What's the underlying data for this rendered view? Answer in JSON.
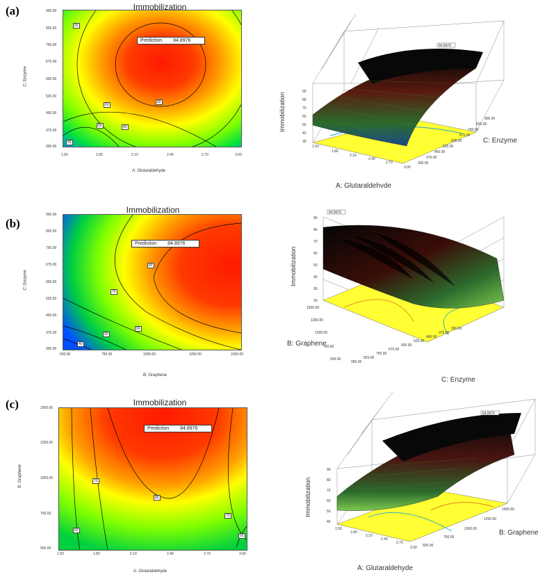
{
  "chart_data": [
    {
      "panel": "(a)",
      "type": "contour",
      "title": "Immobilization",
      "xlabel": "A: Glutaraldehyde",
      "ylabel": "C: Enzyme",
      "x_ticks": [
        "1.50",
        "1.80",
        "2.10",
        "2.40",
        "2.70",
        "3.00"
      ],
      "y_ticks": [
        "900.00",
        "825.00",
        "750.00",
        "675.00",
        "600.00",
        "525.00",
        "450.00",
        "375.00",
        "300.00"
      ],
      "xlim": [
        1.5,
        3.0
      ],
      "ylim": [
        300,
        900
      ],
      "prediction_label": "Prediction",
      "prediction_value": "84.8976",
      "contour_labels": [
        "50",
        "60",
        "70",
        "80",
        "60",
        "80",
        "50"
      ],
      "optimum": {
        "x": 2.4,
        "y": 650
      },
      "surface": {
        "zlabel": "Immobilization",
        "xlabel": "A: Glutaraldehyde",
        "ylabel": "C: Enzyme",
        "z_ticks": [
          "30",
          "40",
          "50",
          "60",
          "70",
          "80",
          "90"
        ],
        "x_ticks": [
          "1.50",
          "1.80",
          "2.10",
          "2.40",
          "2.70",
          "3.00"
        ],
        "y_ticks": [
          "300.00",
          "375.00",
          "450.00",
          "525.00",
          "600.00",
          "675.00",
          "750.00",
          "825.00",
          "900.00"
        ],
        "peak_label": "84.8976"
      }
    },
    {
      "panel": "(b)",
      "type": "contour",
      "title": "Immobilization",
      "xlabel": "B: Graphene",
      "ylabel": "C: Enzyme",
      "x_ticks": [
        "500.00",
        "750.00",
        "1000.00",
        "1250.00",
        "1500.00"
      ],
      "y_ticks": [
        "900.00",
        "825.00",
        "750.00",
        "675.00",
        "600.00",
        "525.00",
        "450.00",
        "375.00",
        "300.00"
      ],
      "xlim": [
        500,
        1500
      ],
      "ylim": [
        300,
        900
      ],
      "prediction_label": "Prediction",
      "prediction_value": "84.8976",
      "contour_labels": [
        "80",
        "70",
        "60",
        "50",
        "40"
      ],
      "optimum": {
        "x": 1450,
        "y": 650
      },
      "surface": {
        "zlabel": "Immobilization",
        "xlabel": "C: Enzyme",
        "ylabel": "B: Graphene",
        "z_ticks": [
          "20",
          "30",
          "40",
          "50",
          "60",
          "70",
          "80",
          "90"
        ],
        "x_ticks": [
          "900.00",
          "825.00",
          "750.00",
          "675.00",
          "600.00",
          "525.00",
          "450.00",
          "375.00",
          "300.00"
        ],
        "y_ticks": [
          "500.00",
          "750.00",
          "1000.00",
          "1250.00",
          "1500.00"
        ],
        "peak_label": "84.8976"
      }
    },
    {
      "panel": "(c)",
      "type": "contour",
      "title": "Immobilization",
      "xlabel": "A: Glutaraldehyde",
      "ylabel": "B: Graphene",
      "x_ticks": [
        "1.50",
        "1.80",
        "2.10",
        "2.40",
        "2.70",
        "3.00"
      ],
      "y_ticks": [
        "1500.00",
        "1250.00",
        "1000.00",
        "750.00",
        "500.00"
      ],
      "xlim": [
        1.5,
        3.0
      ],
      "ylim": [
        500,
        1500
      ],
      "prediction_label": "Prediction",
      "prediction_value": "84.8976",
      "contour_labels": [
        "70",
        "80",
        "70",
        "60",
        "60"
      ],
      "optimum": {
        "x": 2.4,
        "y": 1450
      },
      "surface": {
        "zlabel": "Immobilization",
        "xlabel": "A: Glutaraldehyde",
        "ylabel": "B: Graphene",
        "z_ticks": [
          "40",
          "50",
          "60",
          "70",
          "80",
          "90"
        ],
        "x_ticks": [
          "1.50",
          "1.80",
          "2.10",
          "2.40",
          "2.70",
          "3.00"
        ],
        "y_ticks": [
          "500.00",
          "750.00",
          "1000.00",
          "1250.00",
          "1500.00"
        ],
        "peak_label": "84.8976"
      }
    }
  ]
}
